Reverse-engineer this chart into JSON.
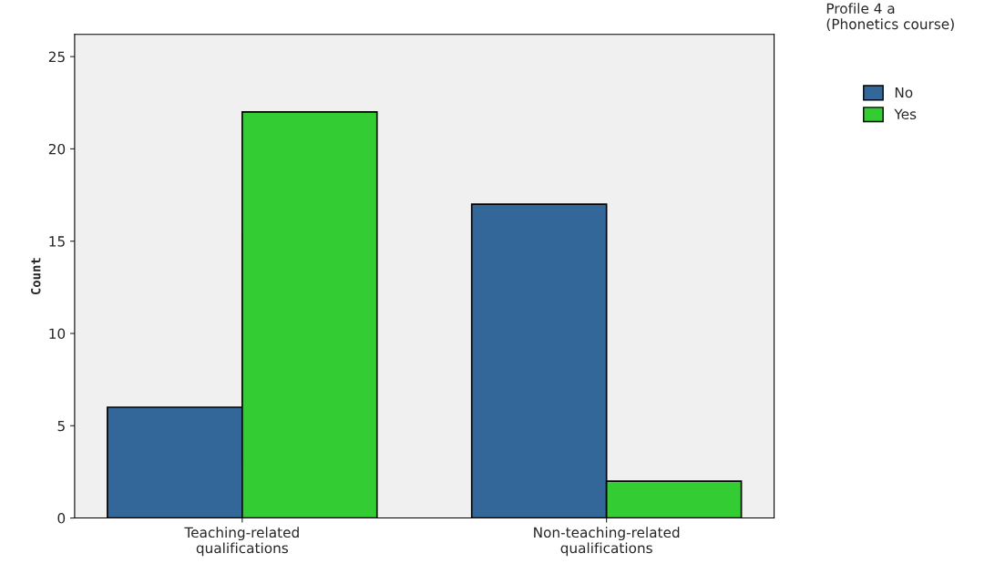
{
  "chart_data": {
    "type": "bar",
    "ylabel": "Count",
    "legend_title": "Profile 4 a\n(Phonetics course)",
    "categories": [
      "Teaching-related\nqualifications",
      "Non-teaching-related\nqualifications"
    ],
    "series": [
      {
        "name": "No",
        "color": "#336699",
        "values": [
          6,
          17
        ]
      },
      {
        "name": "Yes",
        "color": "#33cc33",
        "values": [
          22,
          2
        ]
      }
    ],
    "ylim": [
      0,
      26.2
    ],
    "yticks": [
      0,
      5,
      10,
      15,
      20,
      25
    ],
    "grid": false,
    "legend": "top right"
  }
}
